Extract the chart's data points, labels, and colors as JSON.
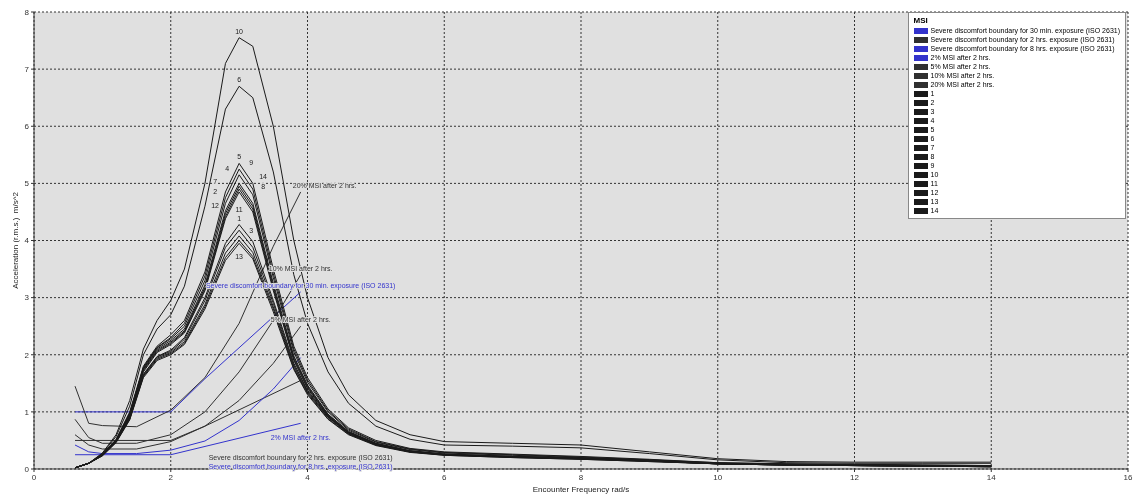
{
  "chart_data": {
    "type": "line",
    "xlabel": "Encounter Frequency  rad/s",
    "ylabel": "Acceleration (r.m.s.)  m/s^2",
    "legend_title": "MSI",
    "legend": "top right",
    "grid": true,
    "xlim": [
      0,
      16
    ],
    "xticks": [
      0,
      2,
      4,
      6,
      8,
      10,
      12,
      14,
      16
    ],
    "ylim": [
      0,
      8
    ],
    "yticks": [
      0,
      1,
      2,
      3,
      4,
      5,
      6,
      7,
      8
    ],
    "x": [
      0.6,
      0.8,
      1.0,
      1.2,
      1.4,
      1.6,
      1.8,
      2.0,
      2.2,
      2.5,
      2.8,
      3.0,
      3.2,
      3.5,
      3.8,
      4.0,
      4.3,
      4.6,
      5.0,
      5.5,
      6,
      7,
      8,
      9,
      10,
      11,
      12,
      13,
      14
    ],
    "series": [
      {
        "name": "Severe discomfort boundary for 30 min. exposure (ISO 2631)",
        "color": "#3333cc",
        "x": [
          0.6,
          2.0,
          2.5,
          3.9
        ],
        "values": [
          1.0,
          1.0,
          1.58,
          3.1
        ]
      },
      {
        "name": "Severe discomfort boundary for 2 hrs. exposure (ISO 2631)",
        "color": "#303030",
        "x": [
          0.6,
          2.0,
          2.5,
          3.9
        ],
        "values": [
          0.5,
          0.5,
          0.75,
          1.55
        ]
      },
      {
        "name": "Severe discomfort boundary for 8 hrs. exposure (ISO 2631)",
        "color": "#3333cc",
        "x": [
          0.6,
          2.0,
          3.9
        ],
        "values": [
          0.25,
          0.25,
          0.8
        ]
      },
      {
        "name": "2% MSI after 2 hrs.",
        "color": "#3333cc",
        "x": [
          0.6,
          0.8,
          1.0,
          1.5,
          2.0,
          2.5,
          3.0,
          3.5,
          3.9
        ],
        "values": [
          0.42,
          0.3,
          0.27,
          0.27,
          0.33,
          0.49,
          0.85,
          1.4,
          1.95
        ]
      },
      {
        "name": "5% MSI after 2 hrs.",
        "color": "#303030",
        "x": [
          0.6,
          0.8,
          1.0,
          1.5,
          2.0,
          2.5,
          3.0,
          3.5,
          3.9
        ],
        "values": [
          0.6,
          0.42,
          0.35,
          0.35,
          0.48,
          0.75,
          1.2,
          1.85,
          2.5
        ]
      },
      {
        "name": "10% MSI after 2 hrs.",
        "color": "#303030",
        "x": [
          0.6,
          0.8,
          1.0,
          1.5,
          2.0,
          2.5,
          3.0,
          3.5,
          3.9
        ],
        "values": [
          0.87,
          0.55,
          0.45,
          0.45,
          0.6,
          1.0,
          1.7,
          2.6,
          3.4
        ]
      },
      {
        "name": "20% MSI after 2 hrs.",
        "color": "#303030",
        "x": [
          0.6,
          0.8,
          1.0,
          1.5,
          2.0,
          2.5,
          3.0,
          3.5,
          3.9
        ],
        "values": [
          1.45,
          0.8,
          0.76,
          0.74,
          1.03,
          1.6,
          2.55,
          3.9,
          4.85
        ]
      },
      {
        "name": "1",
        "color": "#1a1a1a",
        "values": [
          0.02,
          0.1,
          0.24,
          0.48,
          0.9,
          1.66,
          1.97,
          2.08,
          2.3,
          3.0,
          3.95,
          4.28,
          3.98,
          2.95,
          1.85,
          1.38,
          0.92,
          0.64,
          0.44,
          0.31,
          0.26,
          0.22,
          0.19,
          0.15,
          0.1,
          0.08,
          0.07,
          0.06,
          0.05
        ]
      },
      {
        "name": "2",
        "color": "#1a1a1a",
        "values": [
          0.02,
          0.1,
          0.24,
          0.49,
          0.92,
          1.7,
          2.04,
          2.18,
          2.38,
          3.12,
          4.38,
          4.85,
          4.5,
          3.12,
          1.9,
          1.41,
          0.93,
          0.63,
          0.44,
          0.31,
          0.25,
          0.21,
          0.18,
          0.14,
          0.09,
          0.07,
          0.06,
          0.05,
          0.04
        ]
      },
      {
        "name": "3",
        "color": "#1a1a1a",
        "values": [
          0.02,
          0.1,
          0.23,
          0.46,
          0.86,
          1.6,
          1.9,
          2.0,
          2.18,
          2.8,
          3.65,
          3.95,
          3.68,
          2.75,
          1.74,
          1.3,
          0.87,
          0.6,
          0.41,
          0.29,
          0.24,
          0.2,
          0.17,
          0.13,
          0.09,
          0.07,
          0.06,
          0.05,
          0.04
        ]
      },
      {
        "name": "4",
        "color": "#1a1a1a",
        "values": [
          0.02,
          0.1,
          0.25,
          0.5,
          0.97,
          1.77,
          2.12,
          2.28,
          2.5,
          3.3,
          4.65,
          5.15,
          4.8,
          3.35,
          2.05,
          1.52,
          1.0,
          0.68,
          0.47,
          0.34,
          0.28,
          0.24,
          0.2,
          0.16,
          0.1,
          0.08,
          0.07,
          0.06,
          0.05
        ]
      },
      {
        "name": "5",
        "color": "#1a1a1a",
        "values": [
          0.02,
          0.1,
          0.26,
          0.52,
          1.0,
          1.8,
          2.15,
          2.35,
          2.6,
          3.45,
          4.85,
          5.35,
          5.0,
          3.5,
          2.15,
          1.6,
          1.05,
          0.72,
          0.5,
          0.36,
          0.3,
          0.26,
          0.22,
          0.17,
          0.11,
          0.09,
          0.08,
          0.07,
          0.06
        ]
      },
      {
        "name": "6",
        "color": "#1a1a1a",
        "values": [
          0.02,
          0.1,
          0.27,
          0.57,
          1.1,
          2.0,
          2.45,
          2.7,
          3.2,
          4.6,
          6.3,
          6.7,
          6.5,
          5.2,
          3.4,
          2.55,
          1.7,
          1.15,
          0.75,
          0.52,
          0.42,
          0.4,
          0.37,
          0.27,
          0.16,
          0.11,
          0.1,
          0.1,
          0.1
        ]
      },
      {
        "name": "7",
        "color": "#1a1a1a",
        "values": [
          0.02,
          0.1,
          0.25,
          0.5,
          0.94,
          1.74,
          2.08,
          2.22,
          2.42,
          3.18,
          4.47,
          4.95,
          4.6,
          3.2,
          1.95,
          1.45,
          0.95,
          0.65,
          0.45,
          0.32,
          0.26,
          0.22,
          0.19,
          0.15,
          0.1,
          0.08,
          0.07,
          0.06,
          0.05
        ]
      },
      {
        "name": "8",
        "color": "#1a1a1a",
        "values": [
          0.02,
          0.1,
          0.24,
          0.49,
          0.93,
          1.72,
          2.06,
          2.2,
          2.4,
          3.15,
          4.42,
          4.9,
          4.55,
          3.16,
          1.92,
          1.43,
          0.94,
          0.64,
          0.44,
          0.31,
          0.25,
          0.21,
          0.18,
          0.14,
          0.09,
          0.07,
          0.06,
          0.05,
          0.05
        ]
      },
      {
        "name": "9",
        "color": "#1a1a1a",
        "values": [
          0.02,
          0.1,
          0.26,
          0.51,
          0.98,
          1.78,
          2.13,
          2.3,
          2.55,
          3.38,
          4.75,
          5.25,
          4.9,
          3.42,
          2.1,
          1.56,
          1.02,
          0.7,
          0.48,
          0.35,
          0.29,
          0.25,
          0.21,
          0.16,
          0.11,
          0.09,
          0.08,
          0.07,
          0.06
        ]
      },
      {
        "name": "10",
        "color": "#1a1a1a",
        "values": [
          0.02,
          0.1,
          0.28,
          0.6,
          1.2,
          2.1,
          2.6,
          2.95,
          3.5,
          5.0,
          7.1,
          7.55,
          7.4,
          6.0,
          4.0,
          3.0,
          1.95,
          1.3,
          0.85,
          0.6,
          0.48,
          0.45,
          0.42,
          0.3,
          0.18,
          0.13,
          0.12,
          0.12,
          0.12
        ]
      },
      {
        "name": "11",
        "color": "#1a1a1a",
        "values": [
          0.02,
          0.1,
          0.24,
          0.48,
          0.9,
          1.65,
          1.96,
          2.06,
          2.27,
          2.95,
          3.88,
          4.18,
          3.88,
          2.9,
          1.82,
          1.36,
          0.91,
          0.63,
          0.43,
          0.3,
          0.25,
          0.21,
          0.18,
          0.14,
          0.09,
          0.07,
          0.06,
          0.05,
          0.04
        ]
      },
      {
        "name": "12",
        "color": "#1a1a1a",
        "values": [
          0.02,
          0.1,
          0.24,
          0.47,
          0.88,
          1.63,
          1.94,
          2.04,
          2.23,
          2.88,
          3.78,
          4.08,
          3.79,
          2.84,
          1.79,
          1.34,
          0.9,
          0.62,
          0.42,
          0.3,
          0.25,
          0.21,
          0.18,
          0.14,
          0.09,
          0.07,
          0.06,
          0.05,
          0.04
        ]
      },
      {
        "name": "13",
        "color": "#1a1a1a",
        "values": [
          0.02,
          0.1,
          0.23,
          0.47,
          0.87,
          1.62,
          1.92,
          2.02,
          2.2,
          2.84,
          3.7,
          4.0,
          3.72,
          2.8,
          1.76,
          1.32,
          0.88,
          0.61,
          0.42,
          0.3,
          0.24,
          0.2,
          0.17,
          0.13,
          0.09,
          0.07,
          0.06,
          0.05,
          0.04
        ]
      },
      {
        "name": "14",
        "color": "#1a1a1a",
        "values": [
          0.02,
          0.1,
          0.25,
          0.5,
          0.95,
          1.75,
          2.1,
          2.25,
          2.45,
          3.22,
          4.52,
          5.0,
          4.65,
          3.25,
          1.98,
          1.47,
          0.96,
          0.66,
          0.45,
          0.32,
          0.26,
          0.22,
          0.19,
          0.15,
          0.1,
          0.08,
          0.07,
          0.06,
          0.05
        ]
      }
    ]
  }
}
